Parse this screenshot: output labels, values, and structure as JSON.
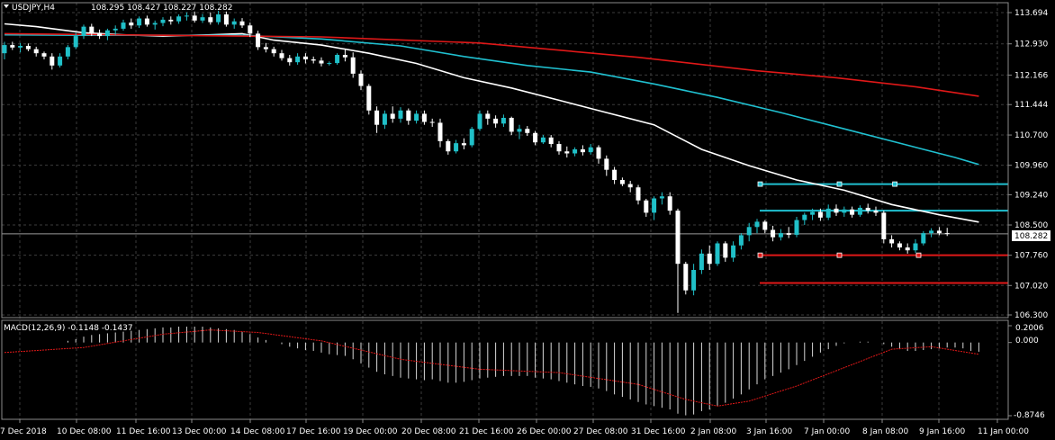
{
  "header": {
    "symbol": "USDJPY,H4",
    "ohlc": "108.295 108.427 108.227 108.282"
  },
  "current_price": "108.282",
  "indicator": {
    "label": "MACD(12,26,9) -0.1148 -0.1437",
    "axis_labels": [
      "0.2006",
      "0.000",
      "-0.8746"
    ]
  },
  "colors": {
    "background": "#000000",
    "grid": "#3c3c3c",
    "bull_candle": "#20c0c8",
    "bear_candle": "#ffffff",
    "ma_white": "#ffffff",
    "ma_cyan": "#20c0d0",
    "ma_red": "#e01818",
    "level_cyan": "#20c0d0",
    "level_red": "#e01818",
    "macd_signal": "#e01818",
    "macd_hist": "#d8d8d8"
  },
  "chart_data": {
    "type": "candlestick",
    "title": "USDJPY,H4",
    "y_ticks": [
      "113.694",
      "112.930",
      "112.166",
      "111.444",
      "110.700",
      "109.960",
      "109.240",
      "108.500",
      "107.760",
      "107.020",
      "106.300"
    ],
    "ylim": [
      106.3,
      113.694
    ],
    "x_ticks": [
      "7 Dec 2018",
      "10 Dec 08:00",
      "11 Dec 16:00",
      "13 Dec 00:00",
      "14 Dec 08:00",
      "17 Dec 16:00",
      "19 Dec 00:00",
      "20 Dec 08:00",
      "21 Dec 16:00",
      "26 Dec 00:00",
      "27 Dec 08:00",
      "31 Dec 16:00",
      "2 Jan 08:00",
      "3 Jan 16:00",
      "7 Jan 00:00",
      "8 Jan 08:00",
      "9 Jan 16:00",
      "11 Jan 00:00"
    ],
    "candles": [
      {
        "o": 112.7,
        "h": 112.98,
        "l": 112.55,
        "c": 112.9
      },
      {
        "o": 112.9,
        "h": 112.98,
        "l": 112.78,
        "c": 112.84
      },
      {
        "o": 112.84,
        "h": 112.95,
        "l": 112.72,
        "c": 112.88
      },
      {
        "o": 112.88,
        "h": 112.94,
        "l": 112.75,
        "c": 112.8
      },
      {
        "o": 112.8,
        "h": 112.86,
        "l": 112.62,
        "c": 112.7
      },
      {
        "o": 112.7,
        "h": 112.74,
        "l": 112.55,
        "c": 112.62
      },
      {
        "o": 112.62,
        "h": 112.7,
        "l": 112.3,
        "c": 112.4
      },
      {
        "o": 112.4,
        "h": 112.7,
        "l": 112.35,
        "c": 112.62
      },
      {
        "o": 112.62,
        "h": 112.9,
        "l": 112.55,
        "c": 112.85
      },
      {
        "o": 112.85,
        "h": 113.2,
        "l": 112.8,
        "c": 113.12
      },
      {
        "o": 113.12,
        "h": 113.4,
        "l": 113.05,
        "c": 113.35
      },
      {
        "o": 113.35,
        "h": 113.42,
        "l": 113.12,
        "c": 113.2
      },
      {
        "o": 113.2,
        "h": 113.28,
        "l": 113.05,
        "c": 113.12
      },
      {
        "o": 113.12,
        "h": 113.3,
        "l": 113.02,
        "c": 113.26
      },
      {
        "o": 113.26,
        "h": 113.38,
        "l": 113.15,
        "c": 113.3
      },
      {
        "o": 113.3,
        "h": 113.52,
        "l": 113.25,
        "c": 113.45
      },
      {
        "o": 113.45,
        "h": 113.55,
        "l": 113.3,
        "c": 113.38
      },
      {
        "o": 113.38,
        "h": 113.6,
        "l": 113.32,
        "c": 113.55
      },
      {
        "o": 113.55,
        "h": 113.62,
        "l": 113.35,
        "c": 113.4
      },
      {
        "o": 113.4,
        "h": 113.5,
        "l": 113.28,
        "c": 113.44
      },
      {
        "o": 113.44,
        "h": 113.58,
        "l": 113.36,
        "c": 113.52
      },
      {
        "o": 113.52,
        "h": 113.6,
        "l": 113.4,
        "c": 113.48
      },
      {
        "o": 113.48,
        "h": 113.65,
        "l": 113.42,
        "c": 113.6
      },
      {
        "o": 113.6,
        "h": 113.7,
        "l": 113.5,
        "c": 113.62
      },
      {
        "o": 113.62,
        "h": 113.72,
        "l": 113.45,
        "c": 113.5
      },
      {
        "o": 113.5,
        "h": 113.66,
        "l": 113.44,
        "c": 113.58
      },
      {
        "o": 113.58,
        "h": 113.7,
        "l": 113.4,
        "c": 113.46
      },
      {
        "o": 113.46,
        "h": 113.74,
        "l": 113.4,
        "c": 113.65
      },
      {
        "o": 113.65,
        "h": 113.72,
        "l": 113.35,
        "c": 113.4
      },
      {
        "o": 113.4,
        "h": 113.55,
        "l": 113.3,
        "c": 113.48
      },
      {
        "o": 113.48,
        "h": 113.56,
        "l": 113.32,
        "c": 113.38
      },
      {
        "o": 113.38,
        "h": 113.45,
        "l": 113.1,
        "c": 113.18
      },
      {
        "o": 113.18,
        "h": 113.25,
        "l": 112.78,
        "c": 112.85
      },
      {
        "o": 112.85,
        "h": 112.95,
        "l": 112.72,
        "c": 112.8
      },
      {
        "o": 112.8,
        "h": 112.86,
        "l": 112.62,
        "c": 112.7
      },
      {
        "o": 112.7,
        "h": 112.78,
        "l": 112.52,
        "c": 112.58
      },
      {
        "o": 112.58,
        "h": 112.66,
        "l": 112.4,
        "c": 112.48
      },
      {
        "o": 112.48,
        "h": 112.7,
        "l": 112.42,
        "c": 112.62
      },
      {
        "o": 112.62,
        "h": 112.7,
        "l": 112.45,
        "c": 112.55
      },
      {
        "o": 112.55,
        "h": 112.62,
        "l": 112.45,
        "c": 112.52
      },
      {
        "o": 112.52,
        "h": 112.6,
        "l": 112.38,
        "c": 112.45
      },
      {
        "o": 112.45,
        "h": 112.5,
        "l": 112.4,
        "c": 112.46
      },
      {
        "o": 112.46,
        "h": 112.7,
        "l": 112.42,
        "c": 112.66
      },
      {
        "o": 112.66,
        "h": 112.8,
        "l": 112.5,
        "c": 112.6
      },
      {
        "o": 112.6,
        "h": 112.72,
        "l": 112.1,
        "c": 112.2
      },
      {
        "o": 112.2,
        "h": 112.28,
        "l": 111.8,
        "c": 111.9
      },
      {
        "o": 111.9,
        "h": 111.95,
        "l": 111.2,
        "c": 111.3
      },
      {
        "o": 111.3,
        "h": 111.4,
        "l": 110.75,
        "c": 110.95
      },
      {
        "o": 110.95,
        "h": 111.3,
        "l": 110.85,
        "c": 111.22
      },
      {
        "o": 111.22,
        "h": 111.4,
        "l": 111.0,
        "c": 111.1
      },
      {
        "o": 111.1,
        "h": 111.38,
        "l": 111.0,
        "c": 111.3
      },
      {
        "o": 111.3,
        "h": 111.35,
        "l": 110.95,
        "c": 111.05
      },
      {
        "o": 111.05,
        "h": 111.3,
        "l": 110.98,
        "c": 111.22
      },
      {
        "o": 111.22,
        "h": 111.3,
        "l": 110.95,
        "c": 111.02
      },
      {
        "o": 111.02,
        "h": 111.1,
        "l": 110.9,
        "c": 111.0
      },
      {
        "o": 111.0,
        "h": 111.1,
        "l": 110.4,
        "c": 110.55
      },
      {
        "o": 110.55,
        "h": 110.6,
        "l": 110.22,
        "c": 110.3
      },
      {
        "o": 110.3,
        "h": 110.58,
        "l": 110.25,
        "c": 110.5
      },
      {
        "o": 110.5,
        "h": 110.62,
        "l": 110.35,
        "c": 110.45
      },
      {
        "o": 110.45,
        "h": 110.9,
        "l": 110.4,
        "c": 110.85
      },
      {
        "o": 110.85,
        "h": 111.3,
        "l": 110.8,
        "c": 111.22
      },
      {
        "o": 111.22,
        "h": 111.3,
        "l": 110.95,
        "c": 111.1
      },
      {
        "o": 111.1,
        "h": 111.18,
        "l": 110.88,
        "c": 110.98
      },
      {
        "o": 110.98,
        "h": 111.2,
        "l": 110.9,
        "c": 111.12
      },
      {
        "o": 111.12,
        "h": 111.15,
        "l": 110.7,
        "c": 110.78
      },
      {
        "o": 110.78,
        "h": 110.95,
        "l": 110.6,
        "c": 110.85
      },
      {
        "o": 110.85,
        "h": 110.92,
        "l": 110.68,
        "c": 110.75
      },
      {
        "o": 110.75,
        "h": 110.8,
        "l": 110.45,
        "c": 110.52
      },
      {
        "o": 110.52,
        "h": 110.7,
        "l": 110.48,
        "c": 110.64
      },
      {
        "o": 110.64,
        "h": 110.7,
        "l": 110.4,
        "c": 110.48
      },
      {
        "o": 110.48,
        "h": 110.55,
        "l": 110.22,
        "c": 110.3
      },
      {
        "o": 110.3,
        "h": 110.42,
        "l": 110.15,
        "c": 110.25
      },
      {
        "o": 110.25,
        "h": 110.4,
        "l": 110.18,
        "c": 110.35
      },
      {
        "o": 110.35,
        "h": 110.45,
        "l": 110.2,
        "c": 110.28
      },
      {
        "o": 110.28,
        "h": 110.48,
        "l": 110.22,
        "c": 110.4
      },
      {
        "o": 110.4,
        "h": 110.45,
        "l": 110.0,
        "c": 110.12
      },
      {
        "o": 110.12,
        "h": 110.2,
        "l": 109.7,
        "c": 109.85
      },
      {
        "o": 109.85,
        "h": 109.92,
        "l": 109.5,
        "c": 109.6
      },
      {
        "o": 109.6,
        "h": 109.66,
        "l": 109.45,
        "c": 109.5
      },
      {
        "o": 109.5,
        "h": 109.58,
        "l": 109.3,
        "c": 109.42
      },
      {
        "o": 109.42,
        "h": 109.48,
        "l": 109.0,
        "c": 109.1
      },
      {
        "o": 109.1,
        "h": 109.14,
        "l": 108.7,
        "c": 108.8
      },
      {
        "o": 108.8,
        "h": 109.2,
        "l": 108.62,
        "c": 109.15
      },
      {
        "o": 109.15,
        "h": 109.3,
        "l": 109.0,
        "c": 109.2
      },
      {
        "o": 109.2,
        "h": 109.3,
        "l": 108.75,
        "c": 108.85
      },
      {
        "o": 108.85,
        "h": 108.9,
        "l": 106.35,
        "c": 107.55
      },
      {
        "o": 107.55,
        "h": 107.6,
        "l": 106.8,
        "c": 106.9
      },
      {
        "o": 106.9,
        "h": 107.55,
        "l": 106.78,
        "c": 107.4
      },
      {
        "o": 107.4,
        "h": 107.9,
        "l": 107.3,
        "c": 107.8
      },
      {
        "o": 107.8,
        "h": 108.0,
        "l": 107.4,
        "c": 107.55
      },
      {
        "o": 107.55,
        "h": 108.1,
        "l": 107.5,
        "c": 108.05
      },
      {
        "o": 108.05,
        "h": 108.1,
        "l": 107.6,
        "c": 107.7
      },
      {
        "o": 107.7,
        "h": 108.1,
        "l": 107.6,
        "c": 108.0
      },
      {
        "o": 108.0,
        "h": 108.3,
        "l": 107.9,
        "c": 108.25
      },
      {
        "o": 108.25,
        "h": 108.55,
        "l": 108.1,
        "c": 108.45
      },
      {
        "o": 108.45,
        "h": 108.65,
        "l": 108.3,
        "c": 108.58
      },
      {
        "o": 108.58,
        "h": 108.62,
        "l": 108.3,
        "c": 108.38
      },
      {
        "o": 108.38,
        "h": 108.48,
        "l": 108.1,
        "c": 108.2
      },
      {
        "o": 108.2,
        "h": 108.4,
        "l": 108.12,
        "c": 108.3
      },
      {
        "o": 108.3,
        "h": 108.45,
        "l": 108.18,
        "c": 108.26
      },
      {
        "o": 108.26,
        "h": 108.7,
        "l": 108.2,
        "c": 108.62
      },
      {
        "o": 108.62,
        "h": 108.8,
        "l": 108.5,
        "c": 108.75
      },
      {
        "o": 108.75,
        "h": 108.9,
        "l": 108.62,
        "c": 108.82
      },
      {
        "o": 108.82,
        "h": 108.9,
        "l": 108.6,
        "c": 108.68
      },
      {
        "o": 108.68,
        "h": 109.0,
        "l": 108.62,
        "c": 108.9
      },
      {
        "o": 108.9,
        "h": 109.0,
        "l": 108.72,
        "c": 108.8
      },
      {
        "o": 108.8,
        "h": 108.95,
        "l": 108.7,
        "c": 108.88
      },
      {
        "o": 108.88,
        "h": 108.95,
        "l": 108.68,
        "c": 108.75
      },
      {
        "o": 108.75,
        "h": 108.98,
        "l": 108.7,
        "c": 108.92
      },
      {
        "o": 108.92,
        "h": 109.02,
        "l": 108.78,
        "c": 108.85
      },
      {
        "o": 108.85,
        "h": 108.95,
        "l": 108.72,
        "c": 108.8
      },
      {
        "o": 108.8,
        "h": 108.85,
        "l": 108.05,
        "c": 108.15
      },
      {
        "o": 108.15,
        "h": 108.25,
        "l": 107.95,
        "c": 108.05
      },
      {
        "o": 108.05,
        "h": 108.1,
        "l": 107.88,
        "c": 107.95
      },
      {
        "o": 107.95,
        "h": 108.05,
        "l": 107.8,
        "c": 107.88
      },
      {
        "o": 107.88,
        "h": 108.15,
        "l": 107.82,
        "c": 108.05
      },
      {
        "o": 108.05,
        "h": 108.35,
        "l": 108.0,
        "c": 108.3
      },
      {
        "o": 108.3,
        "h": 108.42,
        "l": 108.2,
        "c": 108.36
      },
      {
        "o": 108.36,
        "h": 108.45,
        "l": 108.25,
        "c": 108.3
      },
      {
        "o": 108.3,
        "h": 108.43,
        "l": 108.23,
        "c": 108.28
      }
    ],
    "moving_averages": [
      {
        "color": "#ffffff",
        "points": [
          [
            0,
            113.42
          ],
          [
            4,
            113.35
          ],
          [
            10,
            113.2
          ],
          [
            15,
            113.15
          ],
          [
            20,
            113.12
          ],
          [
            26,
            113.15
          ],
          [
            30,
            113.18
          ],
          [
            34,
            113.02
          ],
          [
            40,
            112.9
          ],
          [
            46,
            112.7
          ],
          [
            52,
            112.45
          ],
          [
            58,
            112.1
          ],
          [
            64,
            111.85
          ],
          [
            70,
            111.55
          ],
          [
            76,
            111.25
          ],
          [
            82,
            110.95
          ],
          [
            88,
            110.35
          ],
          [
            94,
            109.95
          ],
          [
            100,
            109.6
          ],
          [
            106,
            109.35
          ],
          [
            112,
            109.0
          ],
          [
            118,
            108.75
          ],
          [
            123,
            108.57
          ]
        ]
      },
      {
        "color": "#20c0d0",
        "points": [
          [
            0,
            113.15
          ],
          [
            10,
            113.14
          ],
          [
            20,
            113.14
          ],
          [
            30,
            113.14
          ],
          [
            40,
            113.05
          ],
          [
            50,
            112.88
          ],
          [
            58,
            112.62
          ],
          [
            66,
            112.4
          ],
          [
            74,
            112.24
          ],
          [
            82,
            111.95
          ],
          [
            90,
            111.62
          ],
          [
            98,
            111.25
          ],
          [
            106,
            110.85
          ],
          [
            114,
            110.45
          ],
          [
            120,
            110.15
          ],
          [
            123,
            109.98
          ]
        ]
      },
      {
        "color": "#e01818",
        "points": [
          [
            0,
            113.18
          ],
          [
            20,
            113.14
          ],
          [
            40,
            113.1
          ],
          [
            60,
            112.95
          ],
          [
            80,
            112.6
          ],
          [
            95,
            112.27
          ],
          [
            105,
            112.1
          ],
          [
            115,
            111.88
          ],
          [
            123,
            111.65
          ]
        ]
      }
    ],
    "levels": [
      {
        "price": 109.5,
        "from": 95,
        "to": 123,
        "color": "#20c0d0",
        "markers": [
          95,
          105,
          112
        ]
      },
      {
        "price": 108.85,
        "from": 95,
        "to": 123,
        "color": "#20c0d0",
        "markers": []
      },
      {
        "price": 107.76,
        "from": 95,
        "to": 123,
        "color": "#e01818",
        "markers": [
          95,
          105,
          115
        ]
      },
      {
        "price": 107.08,
        "from": 95,
        "to": 123,
        "color": "#e01818",
        "markers": []
      }
    ],
    "macd": {
      "ylim": [
        -0.8746,
        0.2006
      ],
      "histogram": [
        0.0,
        0.0,
        0.0,
        0.0,
        0.0,
        0.0,
        0.0,
        0.0,
        0.02,
        0.04,
        0.07,
        0.09,
        0.1,
        0.11,
        0.12,
        0.13,
        0.14,
        0.15,
        0.16,
        0.17,
        0.18,
        0.18,
        0.19,
        0.19,
        0.19,
        0.19,
        0.18,
        0.17,
        0.16,
        0.15,
        0.13,
        0.1,
        0.06,
        0.03,
        0.0,
        -0.02,
        -0.05,
        -0.07,
        -0.09,
        -0.1,
        -0.12,
        -0.14,
        -0.15,
        -0.16,
        -0.2,
        -0.25,
        -0.3,
        -0.35,
        -0.38,
        -0.4,
        -0.42,
        -0.43,
        -0.44,
        -0.45,
        -0.44,
        -0.46,
        -0.48,
        -0.48,
        -0.47,
        -0.45,
        -0.43,
        -0.42,
        -0.41,
        -0.4,
        -0.4,
        -0.4,
        -0.4,
        -0.42,
        -0.43,
        -0.44,
        -0.46,
        -0.48,
        -0.5,
        -0.52,
        -0.53,
        -0.55,
        -0.58,
        -0.62,
        -0.65,
        -0.68,
        -0.71,
        -0.74,
        -0.76,
        -0.78,
        -0.8,
        -0.85,
        -0.87,
        -0.86,
        -0.82,
        -0.8,
        -0.76,
        -0.72,
        -0.67,
        -0.62,
        -0.56,
        -0.5,
        -0.44,
        -0.4,
        -0.36,
        -0.32,
        -0.27,
        -0.22,
        -0.17,
        -0.12,
        -0.08,
        -0.04,
        -0.01,
        0.0,
        0.01,
        0.01,
        0.0,
        -0.02,
        -0.05,
        -0.08,
        -0.1,
        -0.1,
        -0.09,
        -0.08,
        -0.07,
        -0.06,
        -0.06,
        -0.07,
        -0.1,
        -0.11
      ],
      "signal": [
        [
          0,
          -0.12
        ],
        [
          10,
          -0.06
        ],
        [
          20,
          0.1
        ],
        [
          26,
          0.15
        ],
        [
          32,
          0.12
        ],
        [
          40,
          0.02
        ],
        [
          50,
          -0.2
        ],
        [
          60,
          -0.32
        ],
        [
          70,
          -0.36
        ],
        [
          80,
          -0.5
        ],
        [
          86,
          -0.68
        ],
        [
          90,
          -0.76
        ],
        [
          94,
          -0.7
        ],
        [
          100,
          -0.52
        ],
        [
          106,
          -0.3
        ],
        [
          112,
          -0.08
        ],
        [
          117,
          -0.05
        ],
        [
          123,
          -0.14
        ]
      ]
    }
  }
}
